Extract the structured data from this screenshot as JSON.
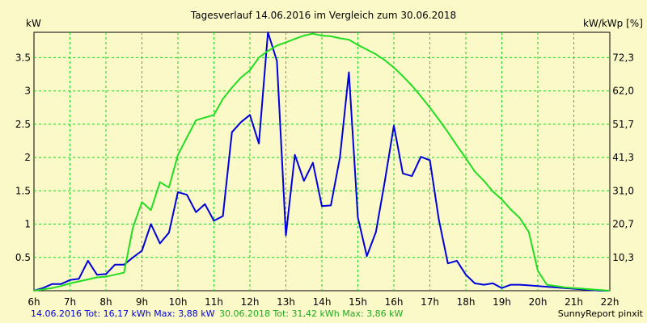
{
  "chart_data": {
    "type": "line",
    "title": "Tagesverlauf 14.06.2016 im Vergleich zum 30.06.2018",
    "y_left_label": "kW",
    "y_right_label": "kW/kWp [%]",
    "x_ticks": [
      "6h",
      "7h",
      "8h",
      "9h",
      "10h",
      "11h",
      "12h",
      "13h",
      "14h",
      "15h",
      "16h",
      "17h",
      "18h",
      "19h",
      "20h",
      "21h",
      "22h"
    ],
    "y_left_ticks": [
      "0.5",
      "1",
      "1.5",
      "2",
      "2.5",
      "3",
      "3.5"
    ],
    "y_left_tick_values": [
      0.5,
      1,
      1.5,
      2,
      2.5,
      3,
      3.5
    ],
    "y_right_ticks": [
      "10,3",
      "20,7",
      "31,0",
      "41,3",
      "51,7",
      "62,0",
      "72,3"
    ],
    "x_range": [
      6,
      22
    ],
    "y_range": [
      0,
      3.88
    ],
    "grid": true,
    "legend_position": "bottom-left",
    "series": [
      {
        "name": "14.06.2016 Tot: 16,17 kWh Max: 3,88 kW",
        "color": "#0000dd",
        "x": [
          6.0,
          6.25,
          6.5,
          6.75,
          7.0,
          7.25,
          7.5,
          7.75,
          8.0,
          8.25,
          8.5,
          8.75,
          9.0,
          9.25,
          9.5,
          9.75,
          10.0,
          10.25,
          10.5,
          10.75,
          11.0,
          11.25,
          11.5,
          11.75,
          12.0,
          12.25,
          12.5,
          12.75,
          13.0,
          13.25,
          13.5,
          13.75,
          14.0,
          14.25,
          14.5,
          14.75,
          15.0,
          15.25,
          15.5,
          15.75,
          16.0,
          16.25,
          16.5,
          16.75,
          17.0,
          17.25,
          17.5,
          17.75,
          18.0,
          18.25,
          18.5,
          18.75,
          19.0,
          19.25,
          19.5,
          19.75,
          20.0,
          20.25,
          20.5,
          20.75,
          21.0,
          21.25,
          21.5,
          21.75,
          22.0
        ],
        "values": [
          0.0,
          0.04,
          0.1,
          0.1,
          0.16,
          0.18,
          0.45,
          0.24,
          0.25,
          0.39,
          0.39,
          0.5,
          0.6,
          1.0,
          0.71,
          0.87,
          1.48,
          1.44,
          1.18,
          1.3,
          1.05,
          1.12,
          2.38,
          2.53,
          2.64,
          2.21,
          3.88,
          3.45,
          0.83,
          2.04,
          1.65,
          1.92,
          1.27,
          1.28,
          2.0,
          3.28,
          1.1,
          0.52,
          0.88,
          1.65,
          2.48,
          1.76,
          1.72,
          2.01,
          1.96,
          1.07,
          0.41,
          0.45,
          0.24,
          0.11,
          0.09,
          0.11,
          0.04,
          0.09,
          0.09,
          0.08,
          0.07,
          0.06,
          0.05,
          0.04,
          0.03,
          0.02,
          0.01,
          0.0,
          0.0
        ]
      },
      {
        "name": "30.06.2018 Tot: 31,42 kWh Max: 3,86 kW",
        "color": "#22dd22",
        "x": [
          6.0,
          6.25,
          6.5,
          6.75,
          7.0,
          7.25,
          7.5,
          7.75,
          8.0,
          8.25,
          8.5,
          8.75,
          9.0,
          9.25,
          9.5,
          9.75,
          10.0,
          10.25,
          10.5,
          10.75,
          11.0,
          11.25,
          11.5,
          11.75,
          12.0,
          12.25,
          12.5,
          12.75,
          13.0,
          13.25,
          13.5,
          13.75,
          14.0,
          14.25,
          14.5,
          14.75,
          15.0,
          15.25,
          15.5,
          15.75,
          16.0,
          16.25,
          16.5,
          16.75,
          17.0,
          17.25,
          17.5,
          17.75,
          18.0,
          18.25,
          18.5,
          18.75,
          19.0,
          19.25,
          19.5,
          19.75,
          20.0,
          20.25,
          20.5,
          20.75,
          21.0,
          21.25,
          21.5,
          21.75,
          22.0
        ],
        "values": [
          0.0,
          0.02,
          0.04,
          0.07,
          0.11,
          0.14,
          0.17,
          0.2,
          0.21,
          0.24,
          0.27,
          0.95,
          1.33,
          1.21,
          1.63,
          1.55,
          2.04,
          2.3,
          2.56,
          2.6,
          2.64,
          2.88,
          3.05,
          3.2,
          3.31,
          3.5,
          3.6,
          3.68,
          3.73,
          3.78,
          3.83,
          3.86,
          3.83,
          3.82,
          3.79,
          3.77,
          3.69,
          3.62,
          3.55,
          3.46,
          3.35,
          3.22,
          3.08,
          2.92,
          2.75,
          2.57,
          2.38,
          2.18,
          1.99,
          1.79,
          1.65,
          1.49,
          1.37,
          1.22,
          1.09,
          0.88,
          0.3,
          0.09,
          0.07,
          0.05,
          0.04,
          0.03,
          0.02,
          0.01,
          0.0
        ]
      }
    ],
    "footer_right": "SunnyReport pinxit"
  }
}
